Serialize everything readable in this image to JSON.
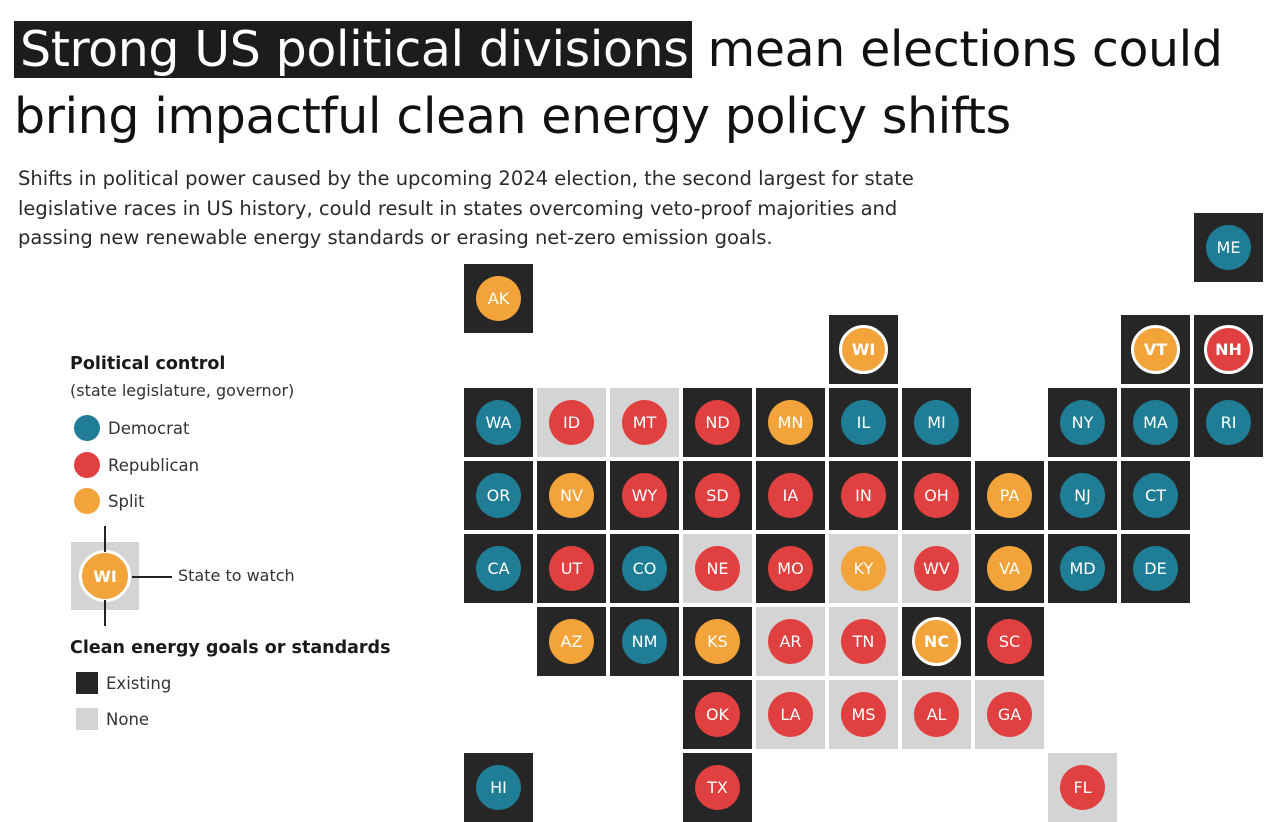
{
  "title": {
    "highlight": "Strong US political divisions",
    "rest": " mean elections could bring impactful clean energy policy shifts"
  },
  "subtitle": "Shifts in political power caused by the upcoming 2024 election, the second largest for state legislative races in US history, could result in states overcoming veto-proof majorities and passing new renewable energy standards or erasing net-zero emission goals.",
  "legend": {
    "political_heading": "Political control",
    "political_sub": "(state legislature, governor)",
    "parties": [
      {
        "label": "Democrat",
        "color": "#1f7e96"
      },
      {
        "label": "Republican",
        "color": "#e0403f"
      },
      {
        "label": "Split",
        "color": "#f2a43a"
      }
    ],
    "watch_example": "WI",
    "watch_label": "State to watch",
    "energy_heading": "Clean energy goals or standards",
    "energy": [
      {
        "label": "Existing",
        "color": "#262626"
      },
      {
        "label": "None",
        "color": "#d4d4d4"
      }
    ]
  },
  "colors": {
    "D": "#1f7e96",
    "R": "#e0403f",
    "S": "#f2a43a",
    "existing": "#262626",
    "none": "#d4d4d4"
  },
  "states": [
    {
      "abbr": "AK",
      "party": "S",
      "energy": "existing",
      "col": 0,
      "row": 0
    },
    {
      "abbr": "ME",
      "party": "D",
      "energy": "existing",
      "col": 10,
      "row": -0.7
    },
    {
      "abbr": "WI",
      "party": "S",
      "energy": "existing",
      "col": 5,
      "row": 0.7,
      "watch": true
    },
    {
      "abbr": "VT",
      "party": "S",
      "energy": "existing",
      "col": 9,
      "row": 0.7,
      "watch": true
    },
    {
      "abbr": "NH",
      "party": "R",
      "energy": "existing",
      "col": 10,
      "row": 0.7,
      "watch": true
    },
    {
      "abbr": "WA",
      "party": "D",
      "energy": "existing",
      "col": 0,
      "row": 1.7
    },
    {
      "abbr": "ID",
      "party": "R",
      "energy": "none",
      "col": 1,
      "row": 1.7
    },
    {
      "abbr": "MT",
      "party": "R",
      "energy": "none",
      "col": 2,
      "row": 1.7
    },
    {
      "abbr": "ND",
      "party": "R",
      "energy": "existing",
      "col": 3,
      "row": 1.7
    },
    {
      "abbr": "MN",
      "party": "S",
      "energy": "existing",
      "col": 4,
      "row": 1.7
    },
    {
      "abbr": "IL",
      "party": "D",
      "energy": "existing",
      "col": 5,
      "row": 1.7
    },
    {
      "abbr": "MI",
      "party": "D",
      "energy": "existing",
      "col": 6,
      "row": 1.7
    },
    {
      "abbr": "NY",
      "party": "D",
      "energy": "existing",
      "col": 8,
      "row": 1.7
    },
    {
      "abbr": "MA",
      "party": "D",
      "energy": "existing",
      "col": 9,
      "row": 1.7
    },
    {
      "abbr": "RI",
      "party": "D",
      "energy": "existing",
      "col": 10,
      "row": 1.7
    },
    {
      "abbr": "OR",
      "party": "D",
      "energy": "existing",
      "col": 0,
      "row": 2.7
    },
    {
      "abbr": "NV",
      "party": "S",
      "energy": "existing",
      "col": 1,
      "row": 2.7
    },
    {
      "abbr": "WY",
      "party": "R",
      "energy": "existing",
      "col": 2,
      "row": 2.7
    },
    {
      "abbr": "SD",
      "party": "R",
      "energy": "existing",
      "col": 3,
      "row": 2.7
    },
    {
      "abbr": "IA",
      "party": "R",
      "energy": "existing",
      "col": 4,
      "row": 2.7
    },
    {
      "abbr": "IN",
      "party": "R",
      "energy": "existing",
      "col": 5,
      "row": 2.7
    },
    {
      "abbr": "OH",
      "party": "R",
      "energy": "existing",
      "col": 6,
      "row": 2.7
    },
    {
      "abbr": "PA",
      "party": "S",
      "energy": "existing",
      "col": 7,
      "row": 2.7
    },
    {
      "abbr": "NJ",
      "party": "D",
      "energy": "existing",
      "col": 8,
      "row": 2.7
    },
    {
      "abbr": "CT",
      "party": "D",
      "energy": "existing",
      "col": 9,
      "row": 2.7
    },
    {
      "abbr": "CA",
      "party": "D",
      "energy": "existing",
      "col": 0,
      "row": 3.7
    },
    {
      "abbr": "UT",
      "party": "R",
      "energy": "existing",
      "col": 1,
      "row": 3.7
    },
    {
      "abbr": "CO",
      "party": "D",
      "energy": "existing",
      "col": 2,
      "row": 3.7
    },
    {
      "abbr": "NE",
      "party": "R",
      "energy": "none",
      "col": 3,
      "row": 3.7
    },
    {
      "abbr": "MO",
      "party": "R",
      "energy": "existing",
      "col": 4,
      "row": 3.7
    },
    {
      "abbr": "KY",
      "party": "S",
      "energy": "none",
      "col": 5,
      "row": 3.7
    },
    {
      "abbr": "WV",
      "party": "R",
      "energy": "none",
      "col": 6,
      "row": 3.7
    },
    {
      "abbr": "VA",
      "party": "S",
      "energy": "existing",
      "col": 7,
      "row": 3.7
    },
    {
      "abbr": "MD",
      "party": "D",
      "energy": "existing",
      "col": 8,
      "row": 3.7
    },
    {
      "abbr": "DE",
      "party": "D",
      "energy": "existing",
      "col": 9,
      "row": 3.7
    },
    {
      "abbr": "AZ",
      "party": "S",
      "energy": "existing",
      "col": 1,
      "row": 4.7
    },
    {
      "abbr": "NM",
      "party": "D",
      "energy": "existing",
      "col": 2,
      "row": 4.7
    },
    {
      "abbr": "KS",
      "party": "S",
      "energy": "existing",
      "col": 3,
      "row": 4.7
    },
    {
      "abbr": "AR",
      "party": "R",
      "energy": "none",
      "col": 4,
      "row": 4.7
    },
    {
      "abbr": "TN",
      "party": "R",
      "energy": "none",
      "col": 5,
      "row": 4.7
    },
    {
      "abbr": "NC",
      "party": "S",
      "energy": "existing",
      "col": 6,
      "row": 4.7,
      "watch": true
    },
    {
      "abbr": "SC",
      "party": "R",
      "energy": "existing",
      "col": 7,
      "row": 4.7
    },
    {
      "abbr": "OK",
      "party": "R",
      "energy": "existing",
      "col": 3,
      "row": 5.7
    },
    {
      "abbr": "LA",
      "party": "R",
      "energy": "none",
      "col": 4,
      "row": 5.7
    },
    {
      "abbr": "MS",
      "party": "R",
      "energy": "none",
      "col": 5,
      "row": 5.7
    },
    {
      "abbr": "AL",
      "party": "R",
      "energy": "none",
      "col": 6,
      "row": 5.7
    },
    {
      "abbr": "GA",
      "party": "R",
      "energy": "none",
      "col": 7,
      "row": 5.7
    },
    {
      "abbr": "HI",
      "party": "D",
      "energy": "existing",
      "col": 0,
      "row": 6.7
    },
    {
      "abbr": "TX",
      "party": "R",
      "energy": "existing",
      "col": 3,
      "row": 6.7
    },
    {
      "abbr": "FL",
      "party": "R",
      "energy": "none",
      "col": 8,
      "row": 6.7
    }
  ]
}
